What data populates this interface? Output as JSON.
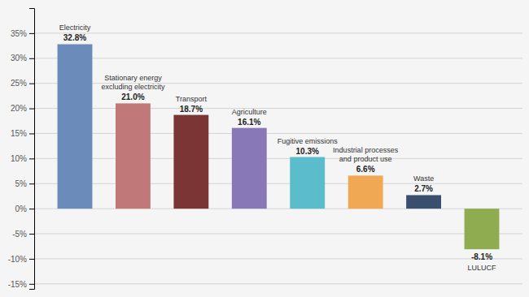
{
  "chart_data": {
    "type": "bar",
    "categories": [
      "Electricity",
      "Stationary energy\nexcluding electricity",
      "Transport",
      "Agriculture",
      "Fugitive emissions",
      "Industrial processes\nand product use",
      "Waste",
      "LULUCF"
    ],
    "values": [
      32.8,
      21.0,
      18.7,
      16.1,
      10.3,
      6.6,
      2.7,
      -8.1
    ],
    "value_labels": [
      "32.8%",
      "21.0%",
      "18.7%",
      "16.1%",
      "10.3%",
      "6.6%",
      "2.7%",
      "-8.1%"
    ],
    "colors": [
      "#6b8cba",
      "#c07878",
      "#7b3535",
      "#8878b8",
      "#5bbccc",
      "#f0a855",
      "#3a4f6e",
      "#8fac50"
    ],
    "ylim": [
      -16,
      40
    ],
    "yticks": [
      {
        "value": -15,
        "label": "-15%"
      },
      {
        "value": -10,
        "label": "-10%"
      },
      {
        "value": -5,
        "label": "-5%"
      },
      {
        "value": 0,
        "label": "0%"
      },
      {
        "value": 5,
        "label": "5%"
      },
      {
        "value": 10,
        "label": "10%"
      },
      {
        "value": 15,
        "label": "15%"
      },
      {
        "value": 20,
        "label": "20%"
      },
      {
        "value": 25,
        "label": "25%"
      },
      {
        "value": 30,
        "label": "30%"
      },
      {
        "value": 35,
        "label": "35%"
      }
    ],
    "grid": true,
    "data_labels": true,
    "tick_labels": "y"
  }
}
